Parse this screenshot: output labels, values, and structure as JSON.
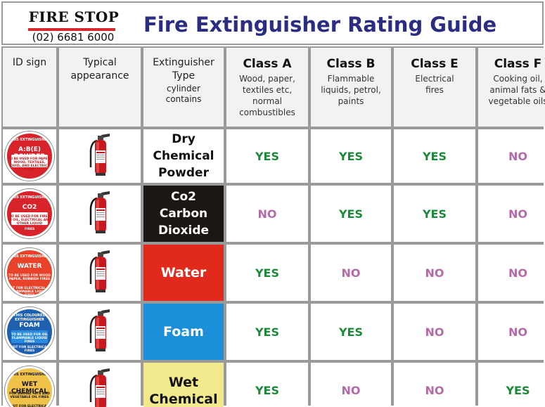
{
  "header": {
    "brand": "FIRE STOP",
    "phone": "(02) 6681 6000",
    "title": "Fire Extinguisher Rating Guide"
  },
  "columns": {
    "id_sign": "ID sign",
    "appearance": "Typical appearance",
    "type": "Extinguisher Type",
    "type_sub": "cylinder contains",
    "class_a": {
      "title": "Class A",
      "desc": "Wood, paper, textiles etc, normal combustibles"
    },
    "class_b": {
      "title": "Class B",
      "desc": "Flammable liquids, petrol, paints"
    },
    "class_e": {
      "title": "Class E",
      "desc": "Electrical fires"
    },
    "class_f": {
      "title": "Class F",
      "desc": "Cooking oil, animal fats & vegetable oils"
    }
  },
  "rows": [
    {
      "type": "Dry Chemical Powder",
      "type_bg": "#ffffff",
      "type_color": "#111111",
      "sign": {
        "bg": "#d8232a",
        "band": "#ffffff",
        "top": "THIS EXTINGUISHER",
        "main": "A:B(E) POWDER",
        "sub": "TO BE USED FOR PAPER, WOOD, TEXTILES, LIQUID, AND ELECTRICAL FIRES",
        "bot": ""
      },
      "a": "YES",
      "b": "YES",
      "e": "YES",
      "f": "NO"
    },
    {
      "type": "Co2 Carbon Dioxide",
      "type_bg": "#1d1714",
      "type_color": "#ffffff",
      "sign": {
        "bg": "#d8232a",
        "band": "#ffffff",
        "top": "THIS EXTINGUISHER",
        "main": "CO2",
        "sub": "TO BE USED FOR FIRES IN OIL, ELECTRICAL AND OTHER LIQUID",
        "bot": "FIRES"
      },
      "a": "NO",
      "b": "YES",
      "e": "YES",
      "f": "NO"
    },
    {
      "type": "Water",
      "type_bg": "#e22a1c",
      "type_color": "#ffffff",
      "sign": {
        "bg": "#e8432a",
        "band": "#e8432a",
        "top": "THIS EXTINGUISHER",
        "main": "WATER",
        "sub": "TO BE USED FOR WOOD PAPER, RUBBISH FIRES",
        "bot": "NOT FOR ELECTRICAL OR FLAMMABLE LIQUID FIRES"
      },
      "a": "YES",
      "b": "NO",
      "e": "NO",
      "f": "NO"
    },
    {
      "type": "Foam",
      "type_bg": "#1b8fd8",
      "type_color": "#ffffff",
      "sign": {
        "bg": "#1e5fb0",
        "band": "#2a8ae0",
        "top": "THIS COLOURED EXTINGUISHER",
        "main": "FOAM",
        "sub": "TO BE USED FOR OIL FLAMMABLE LIQUID FIRES",
        "bot": "NOT FOR ELECTRICAL FIRES"
      },
      "a": "YES",
      "b": "YES",
      "e": "NO",
      "f": "NO"
    },
    {
      "type": "Wet Chemical",
      "type_bg": "#f2e88c",
      "type_color": "#111111",
      "sign": {
        "bg": "#f0c24a",
        "band": "#f0c24a",
        "top": "THIS EXTINGUISHER",
        "main": "WET CHEMICAL",
        "sub": "FOR ANIMAL FATS AND VEGETABLE OIL FIRES",
        "bot": "NOT FOR ELECTRICAL FIRES"
      },
      "a": "YES",
      "b": "NO",
      "e": "NO",
      "f": "YES"
    }
  ],
  "colors": {
    "yes": "#1a8a3a",
    "no": "#b56aa8",
    "title": "#2b2d83",
    "brand_bar": "#d42a2a"
  }
}
